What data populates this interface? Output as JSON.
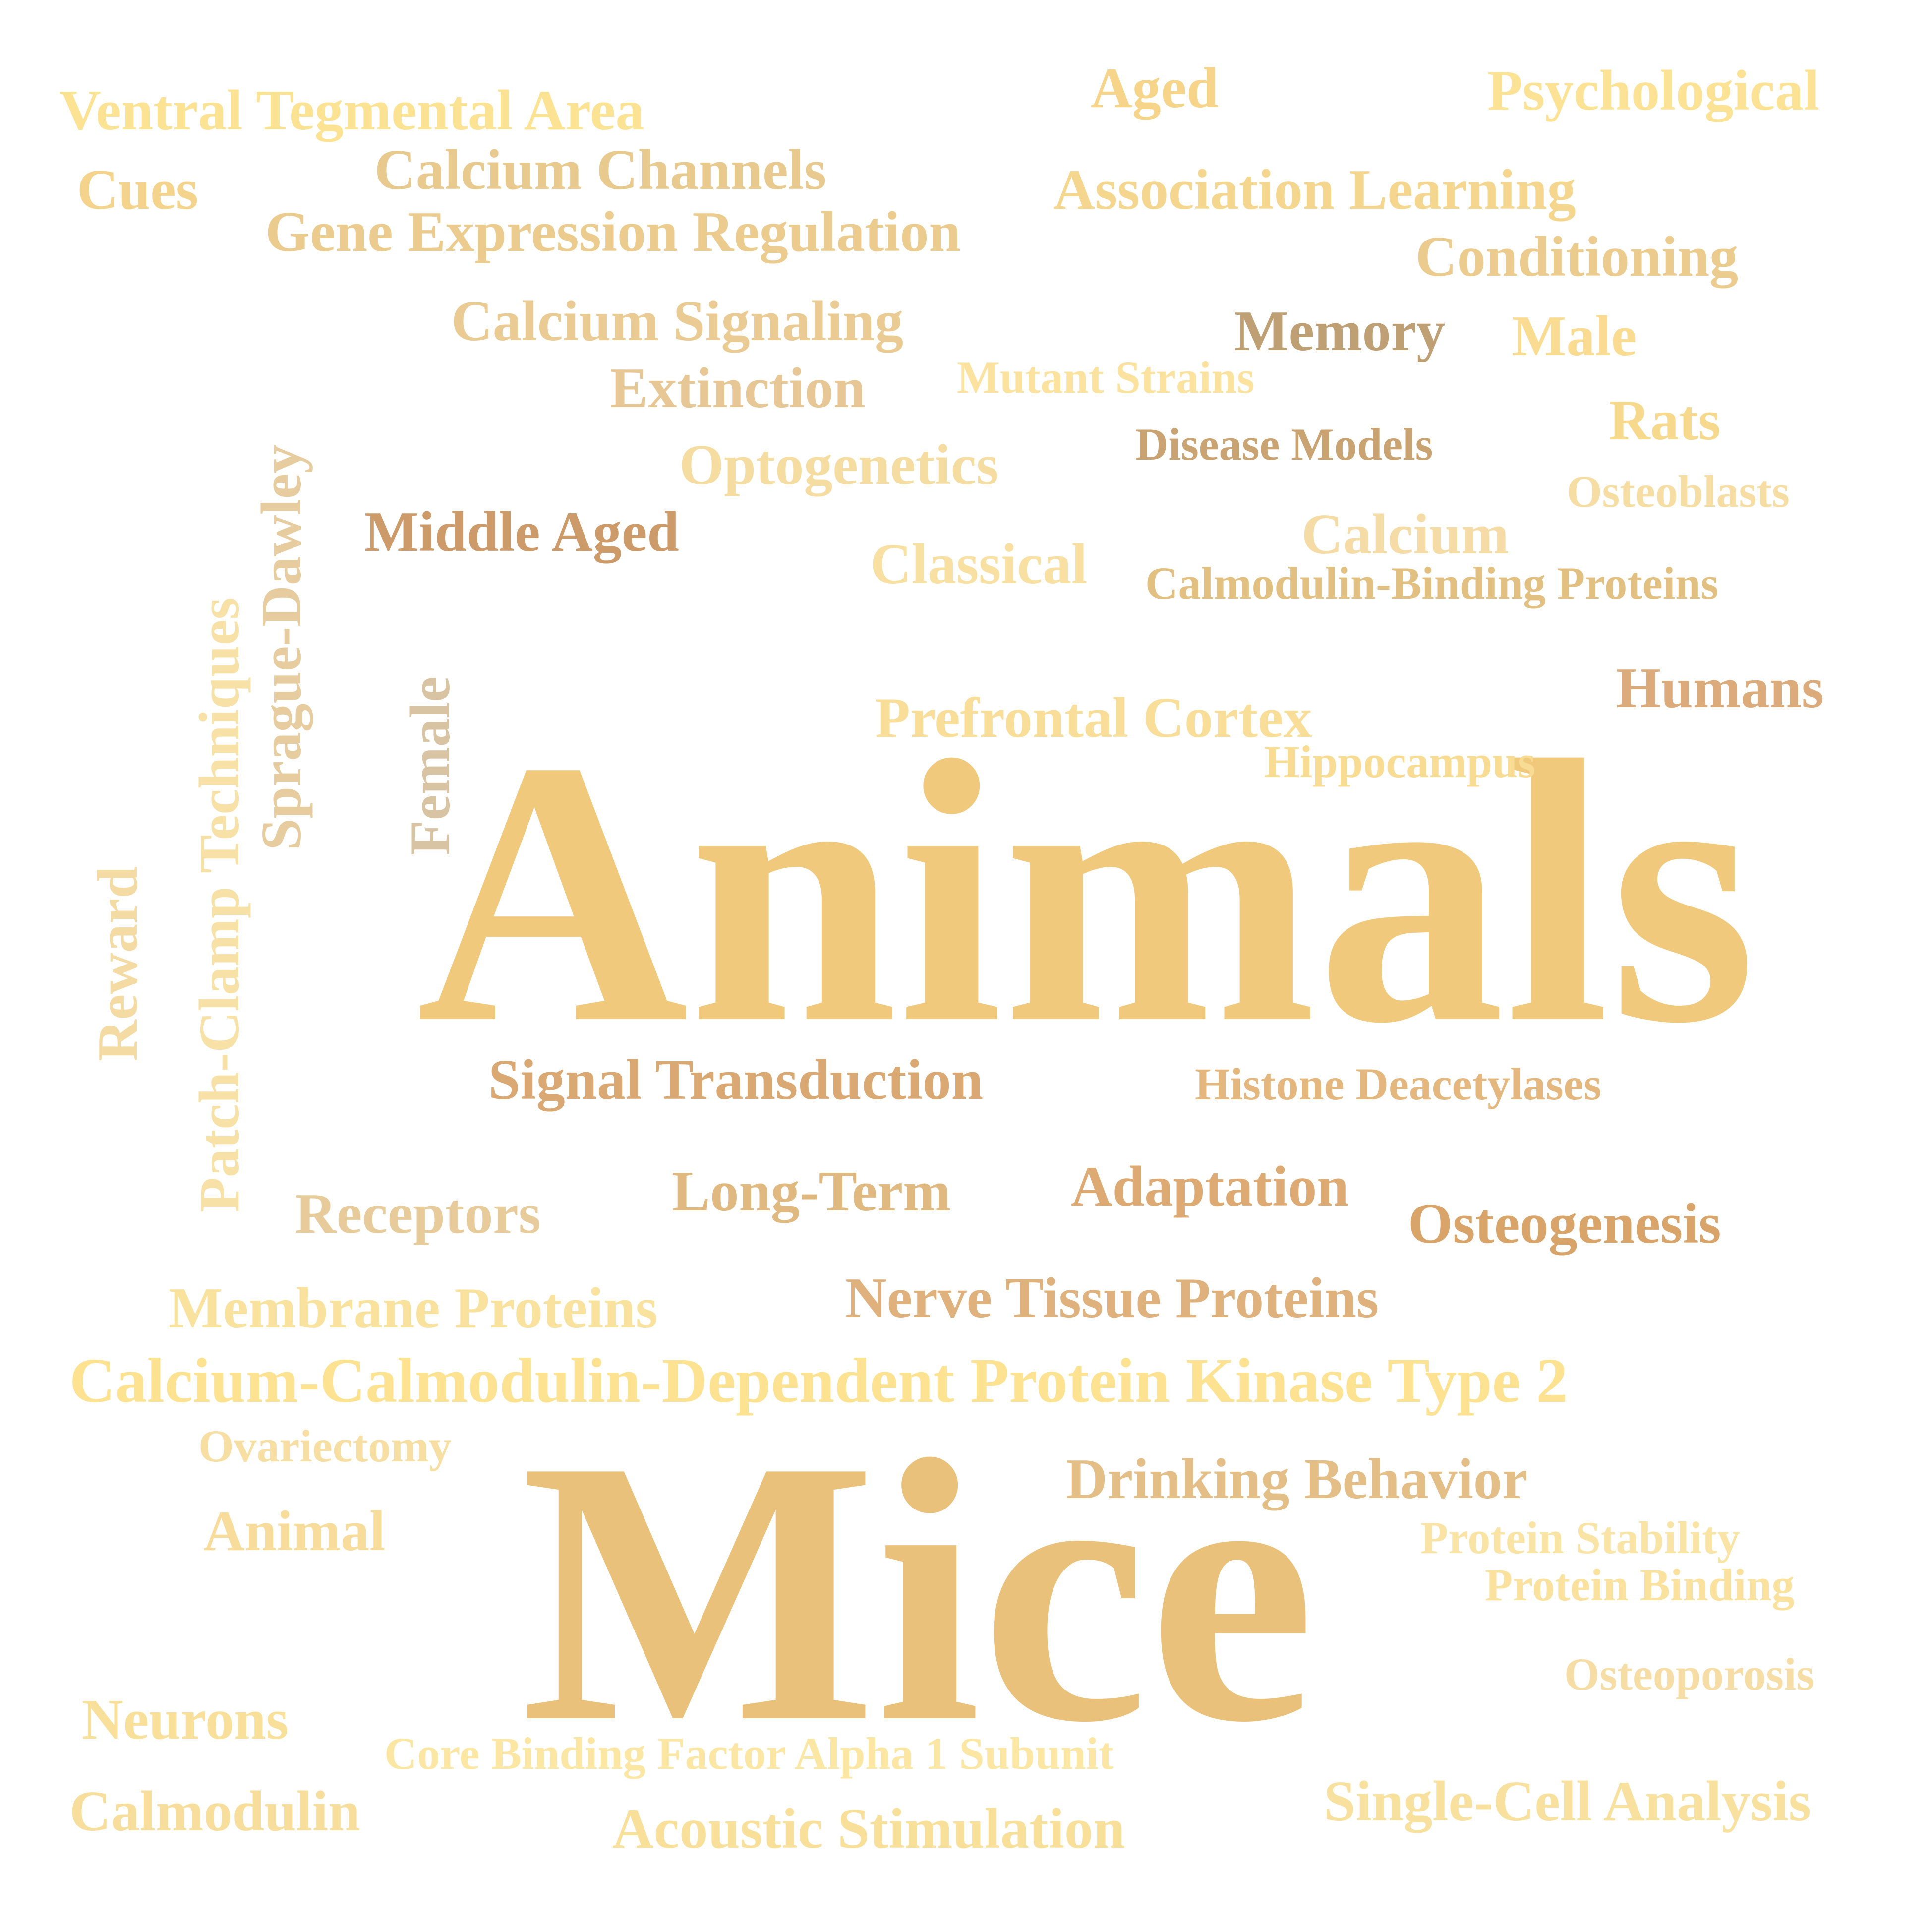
{
  "cloud": {
    "words": [
      {
        "text": "Animals",
        "color": "#F0C97D"
      },
      {
        "text": "Mice",
        "color": "#E9C17A"
      },
      {
        "text": "Calcium-Calmodulin-Dependent Protein Kinase Type 2",
        "color": "#FCE291"
      },
      {
        "text": "Ventral Tegmental Area",
        "color": "#FCE293"
      },
      {
        "text": "Psychological",
        "color": "#FBE294"
      },
      {
        "text": "Aged",
        "color": "#F6D58B"
      },
      {
        "text": "Cues",
        "color": "#F4D48C"
      },
      {
        "text": "Calcium Channels",
        "color": "#E8C98E"
      },
      {
        "text": "Association Learning",
        "color": "#F5D68F"
      },
      {
        "text": "Gene Expression Regulation",
        "color": "#EBCC8E"
      },
      {
        "text": "Conditioning",
        "color": "#EBCC8E"
      },
      {
        "text": "Calcium Signaling",
        "color": "#EACB93"
      },
      {
        "text": "Memory",
        "color": "#BFA074"
      },
      {
        "text": "Male",
        "color": "#F9DB91"
      },
      {
        "text": "Extinction",
        "color": "#E6C795"
      },
      {
        "text": "Mutant Strains",
        "color": "#FBE29E"
      },
      {
        "text": "Rats",
        "color": "#F7D98E"
      },
      {
        "text": "Disease Models",
        "color": "#C9A472"
      },
      {
        "text": "Optogenetics",
        "color": "#F5DCA1"
      },
      {
        "text": "Osteoblasts",
        "color": "#F6DDA3"
      },
      {
        "text": "Middle Aged",
        "color": "#CD9B69"
      },
      {
        "text": "Calcium",
        "color": "#F5DCA6"
      },
      {
        "text": "Classical",
        "color": "#F7E0A2"
      },
      {
        "text": "Calmodulin-Binding Proteins",
        "color": "#E2C081"
      },
      {
        "text": "Humans",
        "color": "#DCAB7B"
      },
      {
        "text": "Prefrontal Cortex",
        "color": "#F8DE98"
      },
      {
        "text": "Hippocampus",
        "color": "#F9DC94"
      },
      {
        "text": "Signal Transduction",
        "color": "#D9A873"
      },
      {
        "text": "Histone Deacetylases",
        "color": "#E3B77D"
      },
      {
        "text": "Long-Term",
        "color": "#E0B980"
      },
      {
        "text": "Adaptation",
        "color": "#DCAA72"
      },
      {
        "text": "Receptors",
        "color": "#E7CB9A"
      },
      {
        "text": "Osteogenesis",
        "color": "#D8A469"
      },
      {
        "text": "Membrane Proteins",
        "color": "#F9E29E"
      },
      {
        "text": "Nerve Tissue Proteins",
        "color": "#DFB17D"
      },
      {
        "text": "Ovariectomy",
        "color": "#F7DFA4"
      },
      {
        "text": "Drinking Behavior",
        "color": "#E3BE87"
      },
      {
        "text": "Animal",
        "color": "#F7DC9C"
      },
      {
        "text": "Protein Stability",
        "color": "#F9E4A6"
      },
      {
        "text": "Protein Binding",
        "color": "#FBE19E"
      },
      {
        "text": "Osteoporosis",
        "color": "#F6DDA5"
      },
      {
        "text": "Neurons",
        "color": "#F8E09B"
      },
      {
        "text": "Core Binding Factor Alpha 1 Subunit",
        "color": "#FCE6A4"
      },
      {
        "text": "Calmodulin",
        "color": "#F7DE9D"
      },
      {
        "text": "Single-Cell Analysis",
        "color": "#F8E09E"
      },
      {
        "text": "Acoustic Stimulation",
        "color": "#F8DF9A"
      },
      {
        "text": "Sprague-Dawley",
        "color": "#E6CC9E"
      },
      {
        "text": "Patch-Clamp Techniques",
        "color": "#F8E1A7"
      },
      {
        "text": "Female",
        "color": "#D8C3A3"
      },
      {
        "text": "Reward",
        "color": "#F4DBA4"
      }
    ]
  }
}
